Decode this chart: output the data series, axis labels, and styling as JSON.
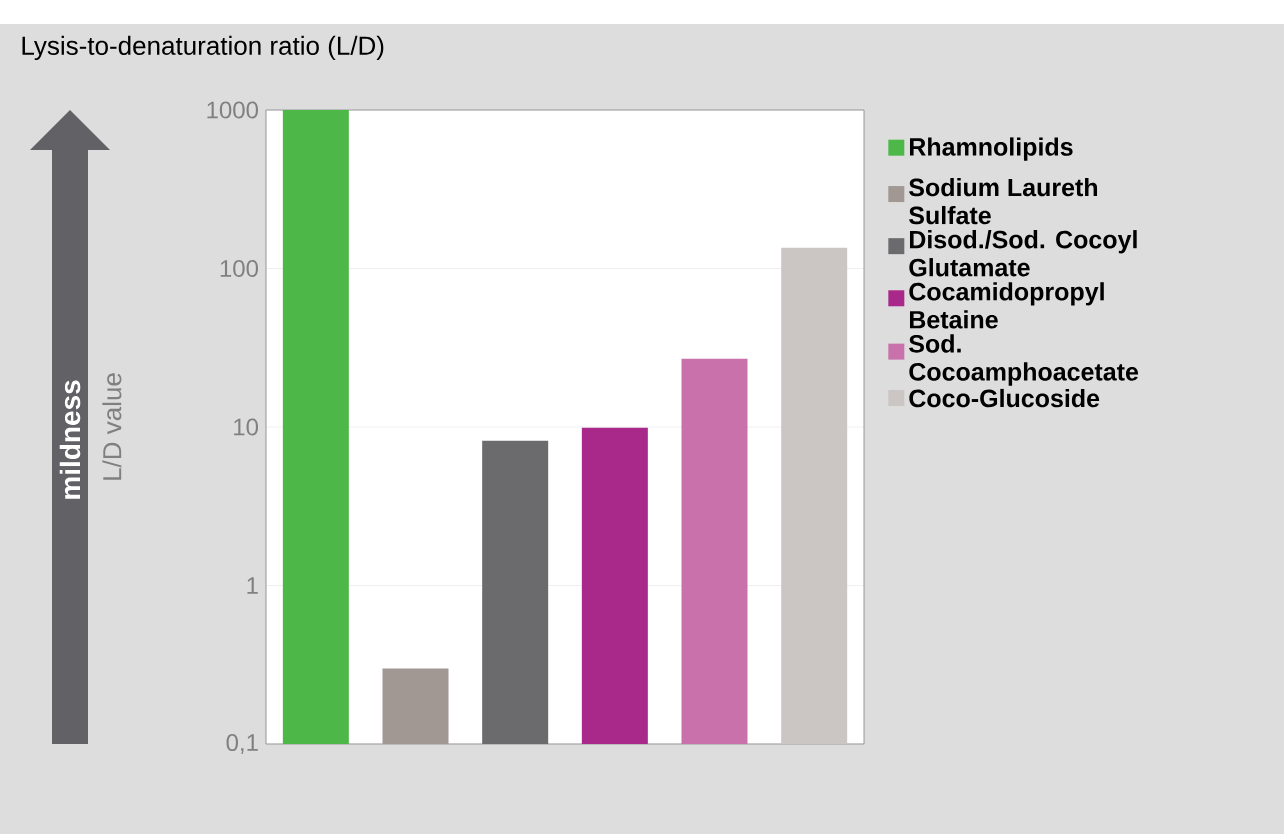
{
  "chart_data": {
    "type": "bar",
    "title": "Lysis-to-denaturation ratio (L/D)",
    "ylabel": "L/D value",
    "annotations": [
      "mildness"
    ],
    "categories": [
      null,
      null,
      null,
      null,
      null,
      null
    ],
    "series": [
      {
        "name": "Rhamnolipids",
        "color": "#4db848",
        "values": [
          1000,
          null,
          null,
          null,
          null,
          null
        ]
      },
      {
        "name": "Sodium Laureth Sulfate",
        "color": "#a19894",
        "values": [
          null,
          0.3,
          null,
          null,
          null,
          null
        ]
      },
      {
        "name": "Disod./Sod. Cocoyl Glutamate",
        "color": "#6b6b6e",
        "values": [
          null,
          null,
          8.2,
          null,
          null,
          null
        ]
      },
      {
        "name": "Cocamidopropyl Betaine",
        "color": "#a9298a",
        "values": [
          null,
          null,
          null,
          9.9,
          null,
          null
        ]
      },
      {
        "name": "Sod. Cocoamphoacetate",
        "color": "#c971ab",
        "values": [
          null,
          null,
          null,
          null,
          27,
          null
        ]
      },
      {
        "name": "Coco-Glucoside",
        "color": "#cbc6c3",
        "values": [
          null,
          null,
          null,
          null,
          null,
          135
        ]
      }
    ],
    "log": true,
    "ylim": [
      0.1,
      1000
    ],
    "yticks": [
      {
        "value": 0.1,
        "label": "0,1"
      },
      1,
      10,
      100,
      1000
    ],
    "grid": "y",
    "legend": "right"
  }
}
